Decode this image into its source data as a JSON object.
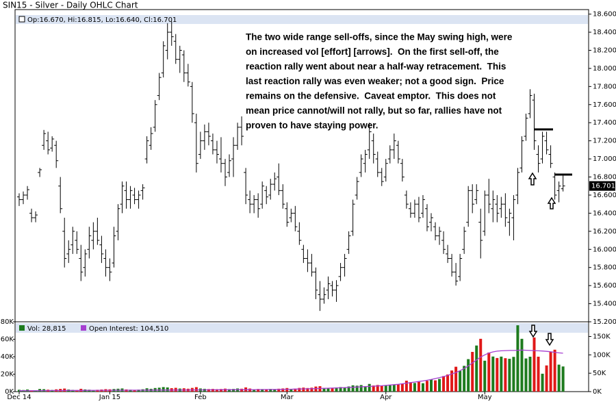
{
  "chart_data": {
    "type": "ohlc",
    "title": "SIN15 - Silver - Daily OHLC Chart",
    "header": "Op:16.670, Hi:16.815, Lo:16.640, Cl:16.701",
    "last_price_label": "16.701",
    "annotation": [
      "The two wide range sell-offs, since the May swing high, were",
      "on increased vol [effort] [arrows].  On the first sell-off, the",
      "reaction rally went about near a half-way retracement.  This",
      "last reaction rally was even weaker; not a good sign.  Price",
      "remains on the defensive.  Caveat emptor.  This does not",
      "mean price cannot/will not rally, but so far, rallies have not",
      "proven to have staying power."
    ],
    "categories": [
      "Dec 14",
      null,
      null,
      null,
      null,
      null,
      null,
      null,
      null,
      null,
      null,
      null,
      null,
      null,
      null,
      null,
      null,
      null,
      null,
      null,
      null,
      null,
      "Jan 15",
      null,
      null,
      null,
      null,
      null,
      null,
      null,
      null,
      null,
      null,
      null,
      null,
      null,
      null,
      null,
      null,
      null,
      null,
      null,
      null,
      null,
      "Feb",
      null,
      null,
      null,
      null,
      null,
      null,
      null,
      null,
      null,
      null,
      null,
      null,
      null,
      null,
      null,
      null,
      null,
      null,
      null,
      null,
      "Mar",
      null,
      null,
      null,
      null,
      null,
      null,
      null,
      null,
      null,
      null,
      null,
      null,
      null,
      null,
      null,
      null,
      null,
      null,
      null,
      null,
      null,
      null,
      null,
      "Apr",
      null,
      null,
      null,
      null,
      null,
      null,
      null,
      null,
      null,
      null,
      null,
      null,
      null,
      null,
      null,
      null,
      null,
      null,
      null,
      null,
      null,
      null,
      null,
      "May",
      null,
      null,
      null,
      null,
      null,
      null,
      null,
      null,
      null,
      null,
      null,
      null,
      null,
      null,
      null,
      null,
      null,
      null,
      null
    ],
    "color": "#000000",
    "ohlc": [
      [
        16.58,
        16.62,
        16.48,
        16.55
      ],
      [
        16.55,
        16.64,
        16.5,
        16.6
      ],
      [
        16.6,
        16.7,
        16.55,
        16.66
      ],
      [
        16.4,
        16.45,
        16.3,
        16.35
      ],
      [
        16.35,
        16.42,
        16.3,
        16.38
      ],
      [
        16.85,
        16.9,
        16.8,
        16.88
      ],
      [
        17.15,
        17.32,
        17.1,
        17.28
      ],
      [
        17.2,
        17.3,
        17.05,
        17.1
      ],
      [
        17.12,
        17.25,
        17.08,
        17.22
      ],
      [
        17.15,
        17.2,
        16.9,
        16.98
      ],
      [
        16.7,
        16.8,
        16.4,
        16.45
      ],
      [
        16.2,
        16.35,
        15.8,
        15.9
      ],
      [
        15.95,
        16.1,
        15.85,
        16.0
      ],
      [
        16.05,
        16.25,
        15.95,
        16.2
      ],
      [
        16.1,
        16.2,
        15.95,
        16.0
      ],
      [
        15.9,
        16.05,
        15.65,
        15.75
      ],
      [
        15.8,
        16.0,
        15.7,
        15.95
      ],
      [
        16.0,
        16.25,
        15.9,
        16.15
      ],
      [
        16.1,
        16.3,
        16.0,
        16.2
      ],
      [
        16.2,
        16.35,
        16.05,
        16.1
      ],
      [
        16.05,
        16.15,
        15.85,
        15.95
      ],
      [
        15.9,
        16.0,
        15.7,
        15.8
      ],
      [
        15.8,
        15.9,
        15.65,
        15.75
      ],
      [
        15.85,
        16.25,
        15.8,
        16.15
      ],
      [
        16.2,
        16.5,
        16.1,
        16.45
      ],
      [
        16.5,
        16.75,
        16.4,
        16.7
      ],
      [
        16.65,
        16.75,
        16.45,
        16.55
      ],
      [
        16.55,
        16.7,
        16.45,
        16.65
      ],
      [
        16.6,
        16.68,
        16.5,
        16.55
      ],
      [
        16.55,
        16.65,
        16.45,
        16.6
      ],
      [
        16.65,
        16.72,
        16.55,
        16.68
      ],
      [
        17.0,
        17.25,
        16.95,
        17.2
      ],
      [
        17.15,
        17.35,
        17.1,
        17.28
      ],
      [
        17.35,
        17.65,
        17.3,
        17.6
      ],
      [
        17.7,
        17.95,
        17.65,
        17.9
      ],
      [
        17.95,
        18.3,
        17.9,
        18.25
      ],
      [
        18.2,
        18.5,
        18.1,
        18.4
      ],
      [
        18.4,
        18.52,
        18.25,
        18.35
      ],
      [
        18.3,
        18.38,
        18.05,
        18.1
      ],
      [
        18.1,
        18.25,
        17.95,
        18.2
      ],
      [
        18.15,
        18.2,
        17.85,
        17.95
      ],
      [
        17.95,
        18.05,
        17.8,
        17.85
      ],
      [
        17.8,
        17.85,
        17.4,
        17.5
      ],
      [
        17.4,
        17.5,
        16.85,
        16.95
      ],
      [
        17.05,
        17.3,
        17.0,
        17.2
      ],
      [
        17.2,
        17.38,
        17.1,
        17.3
      ],
      [
        17.3,
        17.4,
        17.15,
        17.25
      ],
      [
        17.2,
        17.28,
        17.05,
        17.1
      ],
      [
        17.1,
        17.2,
        16.95,
        17.05
      ],
      [
        17.0,
        17.24,
        16.85,
        16.95
      ],
      [
        16.95,
        17.0,
        16.7,
        16.8
      ],
      [
        16.85,
        17.05,
        16.8,
        16.98
      ],
      [
        17.0,
        17.24,
        16.8,
        17.15
      ],
      [
        17.15,
        17.4,
        17.1,
        17.35
      ],
      [
        17.35,
        17.47,
        17.15,
        17.25
      ],
      [
        16.85,
        16.9,
        16.5,
        16.6
      ],
      [
        16.55,
        16.65,
        16.4,
        16.5
      ],
      [
        16.5,
        16.6,
        16.4,
        16.55
      ],
      [
        16.55,
        16.62,
        16.35,
        16.45
      ],
      [
        16.5,
        16.75,
        16.45,
        16.7
      ],
      [
        16.65,
        16.7,
        16.5,
        16.58
      ],
      [
        16.6,
        16.78,
        16.55,
        16.72
      ],
      [
        16.72,
        16.85,
        16.65,
        16.78
      ],
      [
        16.8,
        16.95,
        16.6,
        16.65
      ],
      [
        16.65,
        16.72,
        16.45,
        16.5
      ],
      [
        16.45,
        16.52,
        16.25,
        16.3
      ],
      [
        16.35,
        16.45,
        16.3,
        16.4
      ],
      [
        16.4,
        16.48,
        16.2,
        16.25
      ],
      [
        16.2,
        16.3,
        16.05,
        16.1
      ],
      [
        16.0,
        16.05,
        15.85,
        15.9
      ],
      [
        15.9,
        16.0,
        15.75,
        15.85
      ],
      [
        15.85,
        15.95,
        15.7,
        15.75
      ],
      [
        15.75,
        15.8,
        15.45,
        15.55
      ],
      [
        15.5,
        15.65,
        15.32,
        15.45
      ],
      [
        15.45,
        15.58,
        15.4,
        15.5
      ],
      [
        15.55,
        15.7,
        15.45,
        15.62
      ],
      [
        15.6,
        15.65,
        15.48,
        15.55
      ],
      [
        15.55,
        15.66,
        15.42,
        15.6
      ],
      [
        15.7,
        15.85,
        15.65,
        15.8
      ],
      [
        15.8,
        15.95,
        15.7,
        15.9
      ],
      [
        16.0,
        16.2,
        15.95,
        16.15
      ],
      [
        16.2,
        16.55,
        16.15,
        16.5
      ],
      [
        16.6,
        16.8,
        16.55,
        16.75
      ],
      [
        16.85,
        17.05,
        16.8,
        17.0
      ],
      [
        16.95,
        17.1,
        16.85,
        17.05
      ],
      [
        17.1,
        17.4,
        17.0,
        17.3
      ],
      [
        17.2,
        17.28,
        16.95,
        17.05
      ],
      [
        17.0,
        17.08,
        16.8,
        16.85
      ],
      [
        16.85,
        16.9,
        16.7,
        16.75
      ],
      [
        16.8,
        17.0,
        16.75,
        16.95
      ],
      [
        17.0,
        17.15,
        16.95,
        17.1
      ],
      [
        17.1,
        17.28,
        17.0,
        17.2
      ],
      [
        17.15,
        17.2,
        16.95,
        17.0
      ],
      [
        16.95,
        17.0,
        16.75,
        16.8
      ],
      [
        16.6,
        16.65,
        16.45,
        16.5
      ],
      [
        16.45,
        16.52,
        16.35,
        16.4
      ],
      [
        16.4,
        16.55,
        16.35,
        16.5
      ],
      [
        16.5,
        16.58,
        16.3,
        16.35
      ],
      [
        16.4,
        16.6,
        16.35,
        16.55
      ],
      [
        16.45,
        16.5,
        16.2,
        16.25
      ],
      [
        16.3,
        16.4,
        16.2,
        16.35
      ],
      [
        16.25,
        16.3,
        16.1,
        16.15
      ],
      [
        16.15,
        16.25,
        16.05,
        16.2
      ],
      [
        16.1,
        16.2,
        15.95,
        16.0
      ],
      [
        15.95,
        16.05,
        15.85,
        15.9
      ],
      [
        15.9,
        15.95,
        15.7,
        15.75
      ],
      [
        15.75,
        15.85,
        15.6,
        15.65
      ],
      [
        15.7,
        15.95,
        15.65,
        15.9
      ],
      [
        16.0,
        16.25,
        15.95,
        16.2
      ],
      [
        16.3,
        16.7,
        16.25,
        16.65
      ],
      [
        16.65,
        16.72,
        16.4,
        16.5
      ],
      [
        16.55,
        16.72,
        16.5,
        16.65
      ],
      [
        16.3,
        16.45,
        15.9,
        16.1
      ],
      [
        16.2,
        16.65,
        16.15,
        16.6
      ],
      [
        16.6,
        16.78,
        16.4,
        16.5
      ],
      [
        16.45,
        16.65,
        16.3,
        16.55
      ],
      [
        16.5,
        16.6,
        16.3,
        16.4
      ],
      [
        16.45,
        16.58,
        16.35,
        16.5
      ],
      [
        16.5,
        16.62,
        16.25,
        16.35
      ],
      [
        16.3,
        16.45,
        16.15,
        16.4
      ],
      [
        16.35,
        16.6,
        16.1,
        16.55
      ],
      [
        16.6,
        16.9,
        16.5,
        16.85
      ],
      [
        16.9,
        17.25,
        16.85,
        17.2
      ],
      [
        17.25,
        17.5,
        17.2,
        17.45
      ],
      [
        17.5,
        17.77,
        17.45,
        17.7
      ],
      [
        17.65,
        17.72,
        17.1,
        17.2
      ],
      [
        17.05,
        17.15,
        16.85,
        16.95
      ],
      [
        17.0,
        17.3,
        16.95,
        17.25
      ],
      [
        17.2,
        17.3,
        17.05,
        17.1
      ],
      [
        17.05,
        17.15,
        16.9,
        16.95
      ],
      [
        16.8,
        16.85,
        16.55,
        16.6
      ],
      [
        16.65,
        16.75,
        16.52,
        16.7
      ],
      [
        16.67,
        16.815,
        16.64,
        16.701
      ]
    ],
    "ylim": [
      15.2,
      18.65
    ],
    "yticks": [
      {
        "value": 15.2,
        "label": "15.200"
      },
      {
        "value": 15.4,
        "label": "15.400"
      },
      {
        "value": 15.6,
        "label": "15.600"
      },
      {
        "value": 15.8,
        "label": "15.800"
      },
      {
        "value": 16.0,
        "label": "16.000"
      },
      {
        "value": 16.2,
        "label": "16.200"
      },
      {
        "value": 16.4,
        "label": "16.400"
      },
      {
        "value": 16.6,
        "label": "16.600"
      },
      {
        "value": 16.8,
        "label": "16.800"
      },
      {
        "value": 17.0,
        "label": "17.000"
      },
      {
        "value": 17.2,
        "label": "17.200"
      },
      {
        "value": 17.4,
        "label": "17.400"
      },
      {
        "value": 17.6,
        "label": "17.600"
      },
      {
        "value": 17.8,
        "label": "17.800"
      },
      {
        "value": 18.0,
        "label": "18.000"
      },
      {
        "value": 18.2,
        "label": "18.200"
      },
      {
        "value": 18.4,
        "label": "18.400"
      },
      {
        "value": 18.6,
        "label": "18.600"
      }
    ],
    "volume": {
      "legend": "Vol: 28,815",
      "up_color": "#1e7b1e",
      "down_color": "#e01818",
      "values": [
        2100,
        1800,
        2400,
        1500,
        1200,
        3000,
        2800,
        2200,
        1900,
        2600,
        3100,
        3500,
        2400,
        2000,
        1800,
        3200,
        2500,
        2200,
        1900,
        2100,
        2400,
        2800,
        2600,
        3000,
        3300,
        3600,
        2500,
        2200,
        2000,
        2300,
        2700,
        3800,
        3200,
        4100,
        4500,
        5200,
        4800,
        3900,
        4300,
        3500,
        3800,
        3300,
        4200,
        5100,
        3600,
        3200,
        2900,
        3100,
        2800,
        3000,
        3400,
        2900,
        3100,
        3600,
        3300,
        4800,
        3500,
        2700,
        3000,
        2900,
        2600,
        3100,
        2800,
        3300,
        3600,
        4100,
        3000,
        3500,
        4200,
        4600,
        4100,
        4500,
        5800,
        6200,
        4300,
        3900,
        4200,
        4800,
        5200,
        4600,
        5900,
        7200,
        6800,
        7500,
        6300,
        8800,
        7000,
        7600,
        6500,
        6900,
        7300,
        7800,
        8200,
        9100,
        12500,
        10800,
        9900,
        11200,
        9600,
        12400,
        13800,
        12900,
        14500,
        17800,
        19600,
        24200,
        28500,
        23800,
        29500,
        37200,
        45500,
        52800,
        60500,
        35400,
        44800,
        40200,
        38500,
        40100,
        38300,
        37600,
        39800,
        76000,
        60500,
        38000,
        40000,
        62000,
        40000,
        20500,
        30000,
        45800,
        48000,
        30900,
        28815
      ],
      "ylim": [
        0,
        80000
      ],
      "yticks": [
        {
          "value": 0,
          "label": "0K"
        },
        {
          "value": 20000,
          "label": "20K"
        },
        {
          "value": 40000,
          "label": "40K"
        },
        {
          "value": 60000,
          "label": "60K"
        },
        {
          "value": 80000,
          "label": "80K"
        }
      ]
    },
    "open_interest": {
      "legend": "Open Interest: 104,510",
      "color": "#a63fd0",
      "axis": "y2",
      "values": [
        2500,
        2550,
        2600,
        2650,
        2700,
        2750,
        2800,
        2850,
        2900,
        2950,
        3000,
        3050,
        3100,
        3150,
        3200,
        3250,
        3300,
        3350,
        3400,
        3450,
        3500,
        3550,
        3600,
        3650,
        3700,
        3750,
        3800,
        3850,
        3900,
        3950,
        4000,
        4050,
        4100,
        4150,
        4200,
        4250,
        4300,
        4350,
        4400,
        4450,
        4500,
        4550,
        4600,
        4650,
        4700,
        4750,
        4800,
        4850,
        4900,
        4950,
        5000,
        5050,
        5100,
        5150,
        5200,
        5250,
        5300,
        5400,
        5500,
        5600,
        5700,
        5800,
        5900,
        6000,
        6200,
        6400,
        6600,
        6800,
        7000,
        7300,
        7600,
        7900,
        8200,
        8500,
        8900,
        9300,
        9700,
        10100,
        10500,
        11000,
        11500,
        12000,
        12500,
        13000,
        13600,
        14200,
        14800,
        15400,
        16000,
        17000,
        18000,
        19000,
        20000,
        21500,
        23000,
        24500,
        26000,
        27500,
        29000,
        31000,
        33000,
        35500,
        38000,
        41000,
        44000,
        48000,
        52000,
        57000,
        63000,
        70000,
        78000,
        86000,
        94000,
        100000,
        105000,
        108000,
        110000,
        111000,
        111500,
        112000,
        112000,
        112500,
        113000,
        112500,
        112000,
        111500,
        111000,
        110500,
        109500,
        108500,
        107000,
        105500,
        104510
      ]
    },
    "y2lim": [
      0,
      190000
    ],
    "y2ticks": [
      {
        "value": 0,
        "label": "0K"
      },
      {
        "value": 50000,
        "label": "50K"
      },
      {
        "value": 100000,
        "label": "100K"
      },
      {
        "value": 150000,
        "label": "150K"
      }
    ]
  }
}
